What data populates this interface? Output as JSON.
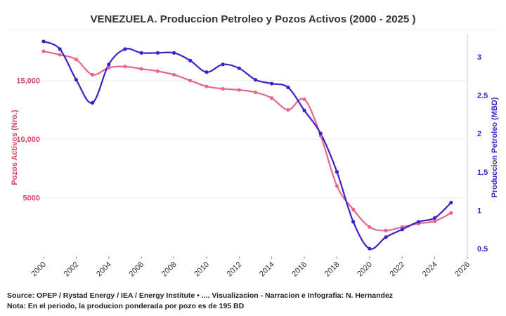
{
  "chart_data": {
    "type": "line",
    "title": "VENEZUELA. Produccion Petroleo y Pozos Activos (2000 - 2025 )",
    "xlabel": "",
    "ylabel_left": "Pozos Activos (Nro.)",
    "ylabel_right": "Produccion Petroleo (MBD)",
    "xlim": [
      2000,
      2026
    ],
    "x_ticks": [
      "2000",
      "2002",
      "2004",
      "2006",
      "2008",
      "2010",
      "2012",
      "2014",
      "2016",
      "2018",
      "2020",
      "2022",
      "2024",
      "2026"
    ],
    "ylim_left": [
      0,
      19000
    ],
    "y_ticks_left": [
      "5000",
      "10,000",
      "15,000"
    ],
    "ylim_right": [
      0.4,
      3.3
    ],
    "y_ticks_right": [
      "0.5",
      "1",
      "1.5",
      "2",
      "2.5",
      "3"
    ],
    "grid": "horizontal",
    "series": [
      {
        "name": "Pozos Activos (Nro.)",
        "axis": "left",
        "color": "#e8668c",
        "x": [
          2000,
          2001,
          2002,
          2003,
          2004,
          2005,
          2006,
          2007,
          2008,
          2009,
          2010,
          2011,
          2012,
          2013,
          2014,
          2015,
          2016,
          2017,
          2018,
          2019,
          2020,
          2021,
          2022,
          2023,
          2024,
          2025
        ],
        "values": [
          17500,
          17200,
          16800,
          15500,
          16100,
          16200,
          16000,
          15800,
          15500,
          15000,
          14500,
          14300,
          14200,
          14000,
          13500,
          12500,
          13400,
          10300,
          6000,
          4000,
          2500,
          2200,
          2500,
          2800,
          3000,
          3700
        ]
      },
      {
        "name": "Produccion Petroleo (MBD)",
        "axis": "right",
        "color": "#3a22c7",
        "x": [
          2000,
          2001,
          2002,
          2003,
          2004,
          2005,
          2006,
          2007,
          2008,
          2009,
          2010,
          2011,
          2012,
          2013,
          2014,
          2015,
          2016,
          2017,
          2018,
          2019,
          2020,
          2021,
          2022,
          2023,
          2024,
          2025
        ],
        "values": [
          3.2,
          3.1,
          2.7,
          2.4,
          2.9,
          3.1,
          3.05,
          3.05,
          3.05,
          2.95,
          2.8,
          2.9,
          2.85,
          2.7,
          2.65,
          2.6,
          2.3,
          2.0,
          1.5,
          0.85,
          0.5,
          0.65,
          0.75,
          0.85,
          0.9,
          1.1
        ]
      }
    ]
  },
  "footer": {
    "source": "Source: OPEP / Rystad Energy / IEA / Energy Institute • .... Visualizacion - Narracion e Infografia: N. Hernandez",
    "note": "Nota: En el periodo, la producion ponderada por pozo es de 195 BD"
  }
}
